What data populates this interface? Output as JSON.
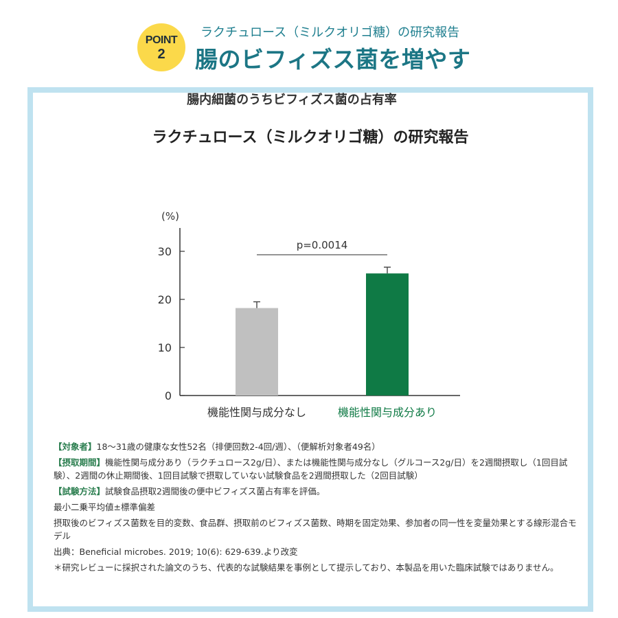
{
  "header": {
    "badge_word": "POINT",
    "badge_number": "2",
    "subtitle": "ラクチュロース（ミルクオリゴ糖）の研究報告",
    "title": "腸のビフィズス菌を増やす"
  },
  "panel": {
    "title": "ラクチュロース（ミルクオリゴ糖）の研究報告"
  },
  "chart_data": {
    "type": "bar",
    "title": "腸内細菌のうちビフィズス菌の占有率",
    "ylabel": "(%)",
    "ylim": [
      0,
      35
    ],
    "yticks": [
      0,
      10,
      20,
      30
    ],
    "categories": [
      "機能性関与成分なし",
      "機能性関与成分あり"
    ],
    "values": [
      18.2,
      25.4
    ],
    "errors": [
      1.3,
      1.3
    ],
    "colors": [
      "#c0c0c0",
      "#0f7a45"
    ],
    "label_colors": [
      "#333333",
      "#0f7a45"
    ],
    "annotation": "p=0.0014",
    "grid": false
  },
  "notes": {
    "subjects_label": "【対象者】",
    "subjects_text": "18〜31歳の健康な女性52名（排便回数2-4回/週）、（便解析対象者49名）",
    "period_label": "【摂取期間】",
    "period_text": "機能性関与成分あり（ラクチュロース2g/日）、または機能性関与成分なし（グルコース2g/日）を2週間摂取し（1回目試験）、2週間の休止期間後、1回目試験で摂取していない試験食品を2週間摂取した（2回目試験）",
    "method_label": "【試験方法】",
    "method_text": "試験食品摂取2週間後の便中ビフィズス菌占有率を評価。",
    "stat1": "最小二乗平均値±標準偏差",
    "stat2": "摂取後のビフィズス菌数を目的変数、食品群、摂取前のビフィズス菌数、時期を固定効果、参加者の同一性を変量効果とする線形混合モデル",
    "source": "出典：Beneficial microbes. 2019; 10(6): 629-639.より改変",
    "disclaimer": "＊研究レビューに採択された論文のうち、代表的な試験結果を事例として提示しており、本製品を用いた臨床試験ではありません。"
  }
}
